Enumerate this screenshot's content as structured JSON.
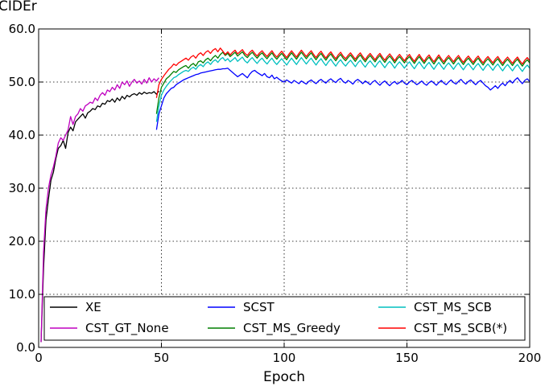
{
  "chart_data": {
    "type": "line",
    "title": "",
    "xlabel": "Epoch",
    "ylabel": "CIDEr",
    "xlim": [
      0,
      200
    ],
    "ylim": [
      0,
      60
    ],
    "xticks": [
      0,
      50,
      100,
      150,
      200
    ],
    "xtick_labels": [
      "0",
      "50",
      "100",
      "150",
      "200"
    ],
    "yticks": [
      0,
      10,
      20,
      30,
      40,
      50,
      60
    ],
    "ytick_labels": [
      "0.0",
      "10.0",
      "20.0",
      "30.0",
      "40.0",
      "50.0",
      "60.0"
    ],
    "grid": true,
    "legend_position": "lower-right",
    "series": [
      {
        "name": "XE",
        "color": "#000000",
        "start": 1,
        "step": 1,
        "values": [
          1.0,
          15.0,
          24.0,
          28.0,
          31.5,
          33.0,
          35.5,
          37.5,
          38.0,
          39.0,
          37.5,
          40.5,
          41.5,
          40.8,
          42.5,
          43.0,
          43.5,
          44.0,
          43.2,
          44.2,
          44.5,
          45.0,
          44.8,
          45.5,
          45.3,
          46.0,
          45.8,
          46.5,
          46.3,
          46.8,
          46.2,
          47.0,
          46.5,
          47.3,
          46.8,
          47.5,
          47.2,
          47.6,
          47.8,
          47.5,
          48.0,
          47.7,
          48.1,
          47.8,
          48.0,
          47.9,
          48.2,
          47.7,
          48.3
        ]
      },
      {
        "name": "CST_GT_None",
        "color": "#bf00bf",
        "start": 1,
        "step": 1,
        "values": [
          1.0,
          18.0,
          26.0,
          30.0,
          32.5,
          34.0,
          36.0,
          38.5,
          39.5,
          39.0,
          40.0,
          41.0,
          43.5,
          42.0,
          43.5,
          44.0,
          45.0,
          44.5,
          45.5,
          45.8,
          46.2,
          46.0,
          47.0,
          46.5,
          47.5,
          48.0,
          47.5,
          48.5,
          48.2,
          49.0,
          48.5,
          49.5,
          48.8,
          50.0,
          49.5,
          50.2,
          49.2,
          50.0,
          50.5,
          49.8,
          50.2,
          49.6,
          50.5,
          49.8,
          50.8,
          50.0,
          50.6,
          50.2,
          50.8
        ]
      },
      {
        "name": "SCST",
        "color": "#0000ff",
        "start": 48,
        "step": 1,
        "values": [
          41.0,
          44.0,
          45.5,
          47.0,
          47.8,
          48.3,
          48.8,
          49.0,
          49.5,
          49.8,
          50.1,
          50.4,
          50.6,
          50.8,
          51.0,
          51.2,
          51.4,
          51.5,
          51.7,
          51.8,
          51.9,
          52.0,
          52.1,
          52.2,
          52.3,
          52.4,
          52.4,
          52.5,
          52.5,
          52.6,
          52.2,
          51.8,
          51.4,
          51.0,
          51.3,
          51.6,
          51.2,
          50.8,
          51.5,
          52.0,
          52.2,
          51.8,
          51.5,
          51.2,
          51.6,
          51.0,
          50.8,
          51.3,
          50.6,
          50.9,
          50.5,
          50.2,
          50.0,
          50.4,
          50.1,
          49.8,
          50.3,
          50.0,
          49.7,
          50.2,
          49.9,
          49.6,
          50.1,
          50.4,
          50.0,
          49.7,
          50.2,
          50.5,
          50.1,
          49.8,
          50.3,
          50.6,
          50.2,
          49.9,
          50.4,
          50.7,
          50.1,
          49.8,
          50.3,
          50.0,
          49.6,
          50.2,
          50.5,
          50.1,
          49.7,
          50.2,
          49.9,
          49.5,
          50.0,
          50.3,
          49.8,
          49.4,
          49.9,
          50.2,
          49.7,
          49.3,
          49.8,
          50.1,
          49.6,
          49.9,
          50.3,
          49.8,
          49.5,
          50.0,
          50.3,
          49.9,
          49.5,
          49.8,
          50.2,
          49.7,
          49.4,
          49.9,
          50.2,
          49.8,
          49.4,
          49.9,
          50.3,
          49.8,
          49.5,
          50.0,
          50.4,
          49.9,
          49.6,
          50.1,
          50.5,
          50.0,
          49.6,
          50.1,
          50.4,
          49.9,
          49.5,
          50.0,
          50.3,
          49.8,
          49.3,
          49.0,
          48.5,
          48.9,
          49.3,
          48.8,
          49.4,
          49.8,
          49.3,
          49.9,
          50.3,
          49.8,
          50.4,
          50.8,
          50.2,
          49.7,
          50.3,
          50.6,
          50.1,
          49.6,
          50.2,
          51.2,
          50.4,
          49.8,
          50.5,
          51.0,
          50.2,
          49.6,
          49.2
        ]
      },
      {
        "name": "CST_MS_Greedy",
        "color": "#007f00",
        "start": 48,
        "step": 1,
        "values": [
          44.0,
          47.0,
          49.0,
          49.8,
          50.6,
          51.0,
          51.5,
          52.0,
          51.8,
          52.3,
          52.6,
          52.9,
          53.1,
          52.6,
          53.2,
          53.5,
          53.0,
          53.8,
          54.0,
          53.6,
          54.2,
          54.5,
          54.0,
          54.6,
          55.0,
          54.5,
          55.2,
          55.6,
          55.0,
          55.4,
          54.8,
          55.2,
          55.6,
          54.9,
          55.3,
          55.7,
          55.0,
          54.6,
          55.2,
          55.6,
          55.0,
          54.5,
          55.1,
          55.5,
          54.9,
          54.4,
          55.0,
          55.5,
          54.8,
          54.3,
          54.9,
          55.4,
          54.8,
          54.2,
          54.9,
          55.5,
          54.9,
          54.3,
          55.0,
          55.6,
          55.0,
          54.4,
          55.0,
          55.5,
          54.8,
          54.2,
          54.9,
          55.4,
          54.7,
          54.1,
          54.8,
          55.3,
          54.6,
          54.0,
          54.7,
          55.2,
          54.5,
          54.0,
          54.6,
          55.1,
          54.5,
          53.9,
          54.6,
          55.1,
          54.4,
          53.8,
          54.5,
          55.0,
          54.4,
          53.8,
          54.5,
          55.0,
          54.3,
          53.7,
          54.4,
          54.9,
          54.3,
          53.6,
          54.3,
          54.8,
          54.2,
          53.6,
          54.3,
          54.8,
          54.1,
          53.5,
          54.2,
          54.8,
          54.1,
          53.5,
          54.2,
          54.7,
          54.0,
          53.4,
          54.1,
          54.7,
          54.0,
          53.4,
          54.1,
          54.6,
          54.0,
          53.4,
          54.1,
          54.6,
          53.9,
          53.3,
          54.0,
          54.5,
          53.9,
          53.3,
          54.0,
          54.5,
          53.8,
          53.2,
          53.9,
          54.4,
          53.8,
          53.2,
          53.9,
          54.4,
          53.7,
          53.1,
          53.8,
          54.3,
          53.7,
          53.1,
          53.8,
          54.3,
          53.6,
          53.0,
          53.7,
          54.2,
          53.6,
          53.0,
          53.7,
          54.2,
          53.5,
          53.0
        ]
      },
      {
        "name": "CST_MS_SCB",
        "color": "#00bfbf",
        "start": 48,
        "step": 1,
        "values": [
          42.5,
          45.5,
          47.5,
          48.5,
          49.2,
          49.8,
          50.3,
          50.8,
          51.0,
          51.4,
          51.7,
          52.0,
          52.2,
          52.0,
          52.5,
          52.8,
          52.4,
          53.0,
          53.3,
          52.9,
          53.5,
          53.8,
          53.3,
          53.9,
          54.2,
          53.7,
          54.3,
          54.6,
          54.0,
          54.4,
          53.8,
          54.2,
          54.6,
          53.9,
          54.3,
          54.7,
          54.0,
          53.6,
          54.2,
          54.6,
          54.0,
          53.5,
          54.1,
          54.5,
          53.9,
          53.4,
          54.0,
          54.5,
          53.8,
          53.3,
          53.9,
          54.4,
          53.8,
          53.2,
          53.9,
          54.5,
          53.9,
          53.3,
          54.0,
          54.6,
          54.0,
          53.4,
          54.0,
          54.5,
          53.8,
          53.2,
          53.9,
          54.4,
          53.7,
          53.1,
          53.8,
          54.3,
          53.6,
          53.0,
          53.7,
          54.2,
          53.5,
          53.0,
          53.6,
          54.1,
          53.5,
          52.9,
          53.6,
          54.1,
          53.4,
          52.8,
          53.5,
          54.0,
          53.4,
          52.8,
          53.5,
          54.0,
          53.3,
          52.7,
          53.4,
          53.9,
          53.3,
          52.6,
          53.3,
          53.8,
          53.2,
          52.6,
          53.3,
          53.8,
          53.1,
          52.5,
          53.2,
          53.8,
          53.1,
          52.5,
          53.2,
          53.7,
          53.0,
          52.4,
          53.1,
          53.7,
          53.0,
          52.4,
          53.1,
          53.6,
          53.0,
          52.4,
          53.1,
          53.6,
          52.9,
          52.3,
          53.0,
          53.5,
          52.9,
          52.3,
          53.0,
          53.5,
          52.8,
          52.2,
          52.9,
          53.4,
          52.8,
          52.2,
          52.9,
          53.4,
          52.7,
          52.1,
          52.8,
          53.3,
          52.7,
          52.1,
          52.8,
          53.3,
          52.6,
          52.0,
          52.7,
          53.2,
          52.6,
          52.0,
          52.7,
          53.2,
          52.5,
          52.0
        ]
      },
      {
        "name": "CST_MS_SCB(*)",
        "color": "#ff0000",
        "start": 48,
        "step": 1,
        "values": [
          47.0,
          49.5,
          50.5,
          51.2,
          51.8,
          52.4,
          52.8,
          53.4,
          53.1,
          53.6,
          53.9,
          54.2,
          54.5,
          54.1,
          54.7,
          55.0,
          54.5,
          55.2,
          55.5,
          55.0,
          55.6,
          55.9,
          55.4,
          56.0,
          56.3,
          55.7,
          56.4,
          55.8,
          55.2,
          55.7,
          55.1,
          55.6,
          56.0,
          55.3,
          55.7,
          56.1,
          55.4,
          55.0,
          55.6,
          56.0,
          55.4,
          54.9,
          55.5,
          55.9,
          55.3,
          54.8,
          55.4,
          55.9,
          55.2,
          54.7,
          55.3,
          55.8,
          55.2,
          54.6,
          55.3,
          55.9,
          55.3,
          54.7,
          55.4,
          56.0,
          55.4,
          54.8,
          55.4,
          55.9,
          55.2,
          54.6,
          55.3,
          55.8,
          55.1,
          54.5,
          55.2,
          55.7,
          55.0,
          54.4,
          55.1,
          55.6,
          54.9,
          54.4,
          55.0,
          55.5,
          54.9,
          54.3,
          55.0,
          55.5,
          54.8,
          54.2,
          54.9,
          55.4,
          54.8,
          54.2,
          54.9,
          55.4,
          54.7,
          54.1,
          54.8,
          55.3,
          54.7,
          54.0,
          54.7,
          55.2,
          54.6,
          54.0,
          54.7,
          55.2,
          54.5,
          53.9,
          54.6,
          55.2,
          54.5,
          53.9,
          54.6,
          55.1,
          54.4,
          53.8,
          54.5,
          55.1,
          54.4,
          53.8,
          54.5,
          55.0,
          54.4,
          53.8,
          54.5,
          55.0,
          54.3,
          53.7,
          54.4,
          54.9,
          54.3,
          53.7,
          54.4,
          54.9,
          54.2,
          53.6,
          54.3,
          54.8,
          54.2,
          53.6,
          54.3,
          54.8,
          54.1,
          53.5,
          54.2,
          54.7,
          54.1,
          53.5,
          54.2,
          54.7,
          54.0,
          53.4,
          54.1,
          54.6,
          54.0,
          53.4,
          54.1,
          54.6,
          53.9,
          53.4
        ]
      }
    ]
  }
}
